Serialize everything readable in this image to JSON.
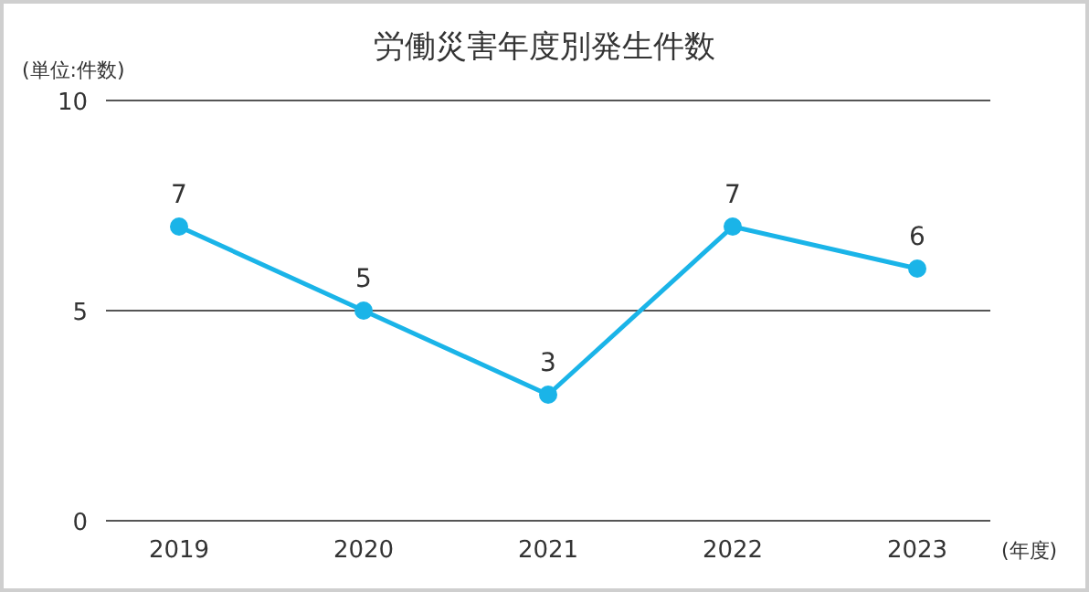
{
  "chart_data": {
    "type": "line",
    "title": "労働災害年度別発生件数",
    "ylabel": "(単位:件数)",
    "xlabel": "(年度)",
    "categories": [
      "2019",
      "2020",
      "2021",
      "2022",
      "2023"
    ],
    "series": [
      {
        "color": "#1ab4e8",
        "values": [
          7,
          5,
          3,
          7,
          6
        ]
      }
    ],
    "ylim": [
      0,
      10
    ],
    "yticks": [
      0,
      5,
      10
    ],
    "grid": "y",
    "marker": "circle",
    "line_style": "solid",
    "data_labels": true
  }
}
